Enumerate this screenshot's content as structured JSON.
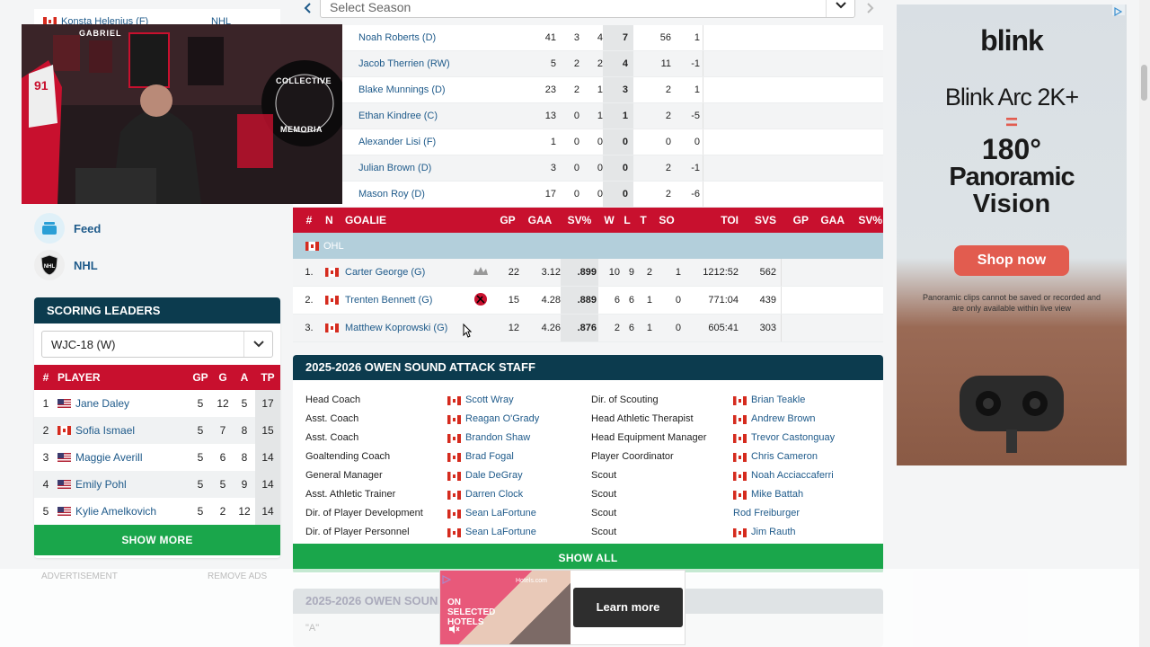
{
  "sidebar": {
    "top_partial_name": "Konsta Helenius (F)",
    "top_partial_team": "NHL",
    "nav": [
      {
        "label": "Feed",
        "icon": "feed-icon"
      },
      {
        "label": "NHL",
        "icon": "nhl-logo-icon"
      }
    ],
    "scoring_leaders": {
      "title": "SCORING LEADERS",
      "selected": "WJC-18 (W)",
      "headers": {
        "num": "#",
        "player": "PLAYER",
        "gp": "GP",
        "g": "G",
        "a": "A",
        "tp": "TP"
      },
      "rows": [
        {
          "num": "1",
          "flag": "us",
          "name": "Jane Daley",
          "gp": "5",
          "g": "12",
          "a": "5",
          "tp": "17"
        },
        {
          "num": "2",
          "flag": "ca",
          "name": "Sofia Ismael",
          "gp": "5",
          "g": "7",
          "a": "8",
          "tp": "15"
        },
        {
          "num": "3",
          "flag": "us",
          "name": "Maggie Averill",
          "gp": "5",
          "g": "6",
          "a": "8",
          "tp": "14"
        },
        {
          "num": "4",
          "flag": "us",
          "name": "Emily Pohl",
          "gp": "5",
          "g": "5",
          "a": "9",
          "tp": "14"
        },
        {
          "num": "5",
          "flag": "us",
          "name": "Kylie Amelkovich",
          "gp": "5",
          "g": "2",
          "a": "12",
          "tp": "14"
        }
      ],
      "show_more": "SHOW MORE"
    },
    "advertisement": "ADVERTISEMENT",
    "remove_ads": "REMOVE ADS"
  },
  "season_select": {
    "placeholder": "Select Season"
  },
  "players": [
    {
      "name": "Noah Roberts (D)",
      "gp": "41",
      "g": "3",
      "a": "4",
      "tp": "7",
      "pim": "56",
      "pm": "1"
    },
    {
      "name": "Jacob Therrien (RW)",
      "gp": "5",
      "g": "2",
      "a": "2",
      "tp": "4",
      "pim": "11",
      "pm": "-1"
    },
    {
      "name": "Blake Munnings (D)",
      "gp": "23",
      "g": "2",
      "a": "1",
      "tp": "3",
      "pim": "2",
      "pm": "1"
    },
    {
      "name": "Ethan Kindree (C)",
      "gp": "13",
      "g": "0",
      "a": "1",
      "tp": "1",
      "pim": "2",
      "pm": "-5"
    },
    {
      "name": "Alexander Lisi (F)",
      "gp": "1",
      "g": "0",
      "a": "0",
      "tp": "0",
      "pim": "0",
      "pm": "0"
    },
    {
      "name": "Julian Brown (D)",
      "gp": "3",
      "g": "0",
      "a": "0",
      "tp": "0",
      "pim": "2",
      "pm": "-1"
    },
    {
      "name": "Mason Roy (D)",
      "gp": "17",
      "g": "0",
      "a": "0",
      "tp": "0",
      "pim": "2",
      "pm": "-6"
    }
  ],
  "goalies": {
    "headers": [
      "#",
      "N",
      "GOALIE",
      "GP",
      "GAA",
      "SV%",
      "W",
      "L",
      "T",
      "SO",
      "TOI",
      "SVS",
      "GP",
      "GAA",
      "SV%"
    ],
    "league": "OHL",
    "rows": [
      {
        "num": "1.",
        "name": "Carter George (G)",
        "gp": "22",
        "gaa": "3.12",
        "sv": ".899",
        "w": "10",
        "l": "9",
        "t": "2",
        "so": "1",
        "toi": "1212:52",
        "svs": "562"
      },
      {
        "num": "2.",
        "name": "Trenten Bennett (G)",
        "gp": "15",
        "gaa": "4.28",
        "sv": ".889",
        "w": "6",
        "l": "6",
        "t": "1",
        "so": "0",
        "toi": "771:04",
        "svs": "439"
      },
      {
        "num": "3.",
        "name": "Matthew Koprowski (G)",
        "gp": "12",
        "gaa": "4.26",
        "sv": ".876",
        "w": "2",
        "l": "6",
        "t": "1",
        "so": "0",
        "toi": "605:41",
        "svs": "303"
      }
    ]
  },
  "staff": {
    "title": "2025-2026 OWEN SOUND ATTACK STAFF",
    "left": [
      {
        "role": "Head Coach",
        "name": "Scott Wray"
      },
      {
        "role": "Asst. Coach",
        "name": "Reagan O'Grady"
      },
      {
        "role": "Asst. Coach",
        "name": "Brandon Shaw"
      },
      {
        "role": "Goaltending Coach",
        "name": "Brad Fogal"
      },
      {
        "role": "General Manager",
        "name": "Dale DeGray"
      },
      {
        "role": "Asst. Athletic Trainer",
        "name": "Darren Clock"
      },
      {
        "role": "Dir. of Player Development",
        "name": "Sean LaFortune"
      },
      {
        "role": "Dir. of Player Personnel",
        "name": "Sean LaFortune"
      }
    ],
    "right": [
      {
        "role": "Dir. of Scouting",
        "name": "Brian Teakle",
        "flag": true
      },
      {
        "role": "Head Athletic Therapist",
        "name": "Andrew Brown",
        "flag": true
      },
      {
        "role": "Head Equipment Manager",
        "name": "Trevor Castonguay",
        "flag": true
      },
      {
        "role": "Player Coordinator",
        "name": "Chris Cameron",
        "flag": true
      },
      {
        "role": "Scout",
        "name": "Noah Acciaccaferri",
        "flag": true
      },
      {
        "role": "Scout",
        "name": "Mike Battah",
        "flag": true
      },
      {
        "role": "Scout",
        "name": "Rod Freiburger",
        "flag": false
      },
      {
        "role": "Scout",
        "name": "Jim Rauth",
        "flag": true
      }
    ],
    "show_all": "SHOW ALL"
  },
  "next_section": {
    "title": "2025-2026 OWEN SOUN",
    "sub": "\"A\""
  },
  "ad_right": {
    "brand": "blink",
    "product": "Blink Arc 2K+",
    "equals": "=",
    "headline1": "180°",
    "headline2": "Panoramic",
    "headline3": "Vision",
    "cta": "Shop now",
    "disclaimer": "Panoramic clips cannot be saved or recorded and are only available within live view",
    "accent": "#e25c4f"
  },
  "ad_bottom": {
    "text": "ON SELECTED HOTELS",
    "site": "Hotels.com",
    "cta": "Learn more"
  },
  "webcam": {
    "jersey_name": "GABRIEL",
    "jersey_number": "91",
    "poster1": "COLLECTIVE",
    "poster2": "MEMORIA"
  }
}
